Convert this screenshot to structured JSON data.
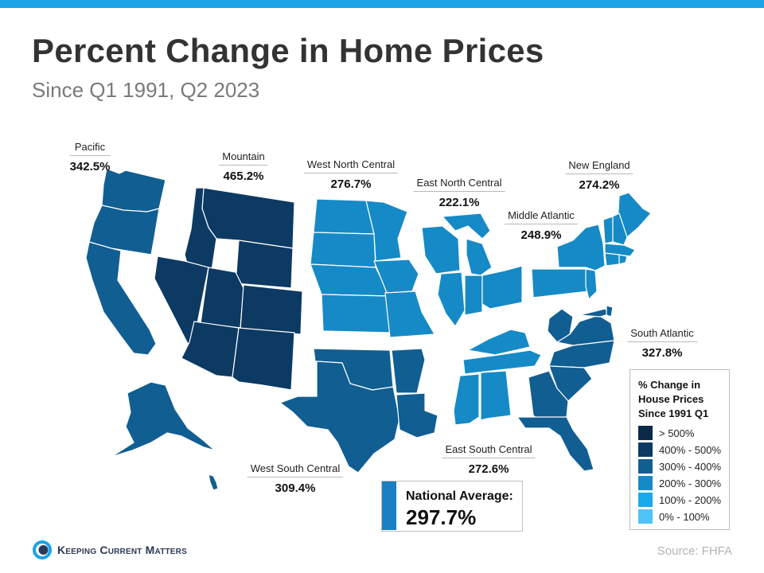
{
  "header": {
    "title": "Percent Change in Home Prices",
    "subtitle": "Since Q1 1991, Q2 2023"
  },
  "colors": {
    "accent_bar": "#1aa3e8",
    "gt_500": "#0b2a48",
    "400_500": "#0d3a63",
    "300_400": "#115e92",
    "200_300": "#168ac6",
    "100_200": "#19a9ea",
    "0_100": "#4fc3f7"
  },
  "regions": [
    {
      "id": "pacific",
      "name": "Pacific",
      "value": "342.5%",
      "bin": "300_400"
    },
    {
      "id": "mountain",
      "name": "Mountain",
      "value": "465.2%",
      "bin": "400_500"
    },
    {
      "id": "west-north-central",
      "name": "West North Central",
      "value": "276.7%",
      "bin": "200_300"
    },
    {
      "id": "east-north-central",
      "name": "East North Central",
      "value": "222.1%",
      "bin": "200_300"
    },
    {
      "id": "new-england",
      "name": "New England",
      "value": "274.2%",
      "bin": "200_300"
    },
    {
      "id": "middle-atlantic",
      "name": "Middle Atlantic",
      "value": "248.9%",
      "bin": "200_300"
    },
    {
      "id": "south-atlantic",
      "name": "South Atlantic",
      "value": "327.8%",
      "bin": "300_400"
    },
    {
      "id": "east-south-central",
      "name": "East South Central",
      "value": "272.6%",
      "bin": "200_300"
    },
    {
      "id": "west-south-central",
      "name": "West South Central",
      "value": "309.4%",
      "bin": "300_400"
    }
  ],
  "legend": {
    "title_lines": [
      "% Change in",
      "House Prices",
      "Since 1991 Q1"
    ],
    "items": [
      {
        "label": "> 500%",
        "color": "#0b2a48"
      },
      {
        "label": "400% - 500%",
        "color": "#0d3a63"
      },
      {
        "label": "300% - 400%",
        "color": "#115e92"
      },
      {
        "label": "200% - 300%",
        "color": "#168ac6"
      },
      {
        "label": "100% - 200%",
        "color": "#19a9ea"
      },
      {
        "label": "0% - 100%",
        "color": "#4fc3f7"
      }
    ]
  },
  "national_average": {
    "label": "National Average:",
    "value": "297.7%"
  },
  "footer": {
    "logo_text": "Keeping Current Matters",
    "logo_icon": "kcm-logo-icon",
    "source": "Source: FHFA"
  }
}
